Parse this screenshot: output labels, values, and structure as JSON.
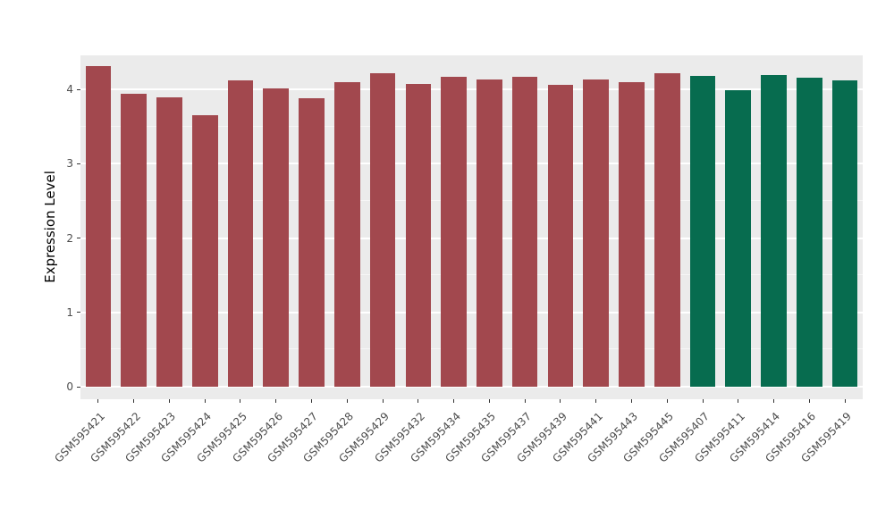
{
  "chart_data": {
    "type": "bar",
    "title": "",
    "xlabel": "",
    "ylabel": "Expression Level",
    "ylim": [
      0,
      4.46
    ],
    "yticks": [
      0,
      1,
      2,
      3,
      4
    ],
    "ytick_labels": [
      "0",
      "1",
      "2",
      "3",
      "4"
    ],
    "minor_gridlines": [
      0.5,
      1.5,
      2.5,
      3.5
    ],
    "grid": "on",
    "legend": "none",
    "panel_background": "#EBEBEB",
    "grid_color": "#FFFFFF",
    "tick_label_color": "#4D4D4D",
    "axis_title_color": "#000000",
    "group_colors": {
      "left_group": "#A2484E",
      "right_group": "#076C4F"
    },
    "categories": [
      "GSM595421",
      "GSM595422",
      "GSM595423",
      "GSM595424",
      "GSM595425",
      "GSM595426",
      "GSM595427",
      "GSM595428",
      "GSM595429",
      "GSM595432",
      "GSM595434",
      "GSM595435",
      "GSM595437",
      "GSM595439",
      "GSM595441",
      "GSM595443",
      "GSM595445",
      "GSM595407",
      "GSM595411",
      "GSM595414",
      "GSM595416",
      "GSM595419"
    ],
    "values": [
      4.32,
      3.94,
      3.89,
      3.65,
      4.12,
      4.02,
      3.88,
      4.1,
      4.22,
      4.07,
      4.17,
      4.13,
      4.17,
      4.06,
      4.14,
      4.1,
      4.22,
      4.18,
      3.99,
      4.2,
      4.16,
      4.12
    ],
    "bar_colors": [
      "#A2484E",
      "#A2484E",
      "#A2484E",
      "#A2484E",
      "#A2484E",
      "#A2484E",
      "#A2484E",
      "#A2484E",
      "#A2484E",
      "#A2484E",
      "#A2484E",
      "#A2484E",
      "#A2484E",
      "#A2484E",
      "#A2484E",
      "#A2484E",
      "#A2484E",
      "#076C4F",
      "#076C4F",
      "#076C4F",
      "#076C4F",
      "#076C4F"
    ]
  }
}
